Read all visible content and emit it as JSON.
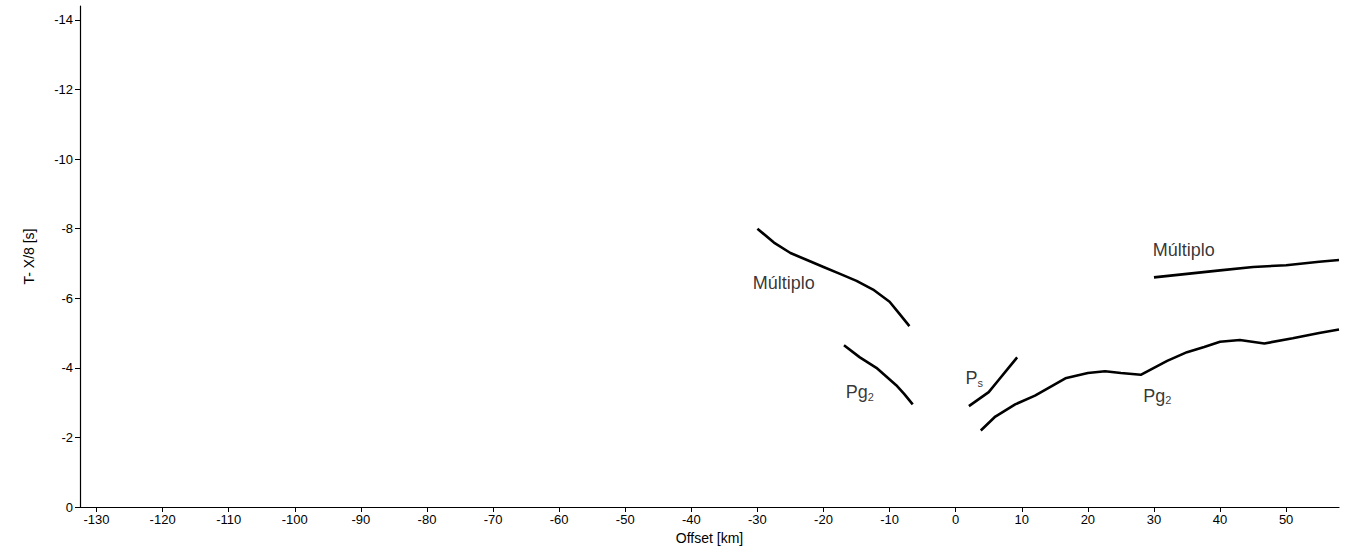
{
  "chart_data": {
    "type": "line",
    "x_label": "Offset [km]",
    "y_label": "T- X/8 [s]",
    "xlim": [
      -132.5,
      58
    ],
    "xticks": [
      -130,
      -120,
      -110,
      -100,
      -90,
      -80,
      -70,
      -60,
      -50,
      -40,
      -30,
      -20,
      -10,
      0,
      10,
      20,
      30,
      40,
      50
    ],
    "ylim": [
      0,
      -14.4
    ],
    "yticks": [
      0,
      -2,
      -4,
      -6,
      -8,
      -10,
      -12,
      -14
    ],
    "grid": false,
    "series": [
      {
        "color": "#000000",
        "line_style": "solid",
        "x": [
          -16.9,
          -14.5,
          -12,
          -10.5,
          -9,
          -7.8,
          -6.5
        ],
        "values": [
          -4.65,
          -4.3,
          -4.0,
          -3.75,
          -3.5,
          -3.25,
          -2.95
        ]
      },
      {
        "color": "#000000",
        "line_style": "solid",
        "x": [
          2,
          3.5,
          5,
          6.5,
          8,
          9.3
        ],
        "values": [
          -2.9,
          -3.1,
          -3.3,
          -3.65,
          -4.0,
          -4.3
        ]
      },
      {
        "color": "#000000",
        "line_style": "solid",
        "x": [
          3.8,
          6,
          9,
          12,
          16.6,
          20,
          22.6,
          25,
          28,
          32,
          35,
          37.6,
          40,
          43,
          46.7,
          51,
          55,
          58
        ],
        "values": [
          -2.2,
          -2.6,
          -2.95,
          -3.2,
          -3.7,
          -3.85,
          -3.9,
          -3.85,
          -3.8,
          -4.2,
          -4.45,
          -4.6,
          -4.75,
          -4.8,
          -4.7,
          -4.85,
          -5.0,
          -5.1
        ]
      },
      {
        "color": "#000000",
        "line_style": "solid",
        "x": [
          -30,
          -27.5,
          -25,
          -22.5,
          -20,
          -17.5,
          -15,
          -12.5,
          -10,
          -8.5,
          -7
        ],
        "values": [
          -8.0,
          -7.6,
          -7.3,
          -7.1,
          -6.9,
          -6.7,
          -6.5,
          -6.25,
          -5.9,
          -5.55,
          -5.2
        ]
      },
      {
        "color": "#000000",
        "line_style": "solid",
        "x": [
          30,
          35,
          40,
          45,
          50,
          55,
          58
        ],
        "values": [
          -6.6,
          -6.7,
          -6.8,
          -6.9,
          -6.95,
          -7.05,
          -7.1
        ]
      }
    ],
    "annotations": [
      {
        "text": "Pg",
        "subscript": "2",
        "x": -14.5,
        "y": -3.3
      },
      {
        "text": "P",
        "subscript": "s",
        "x": 2.8,
        "y": -3.7
      },
      {
        "text": "Pg",
        "subscript": "2",
        "x": 30.5,
        "y": -3.2
      },
      {
        "text": "Múltiplo",
        "x": -26,
        "y": -6.45
      },
      {
        "text": "Múltiplo",
        "x": 34.5,
        "y": -7.4
      }
    ]
  }
}
